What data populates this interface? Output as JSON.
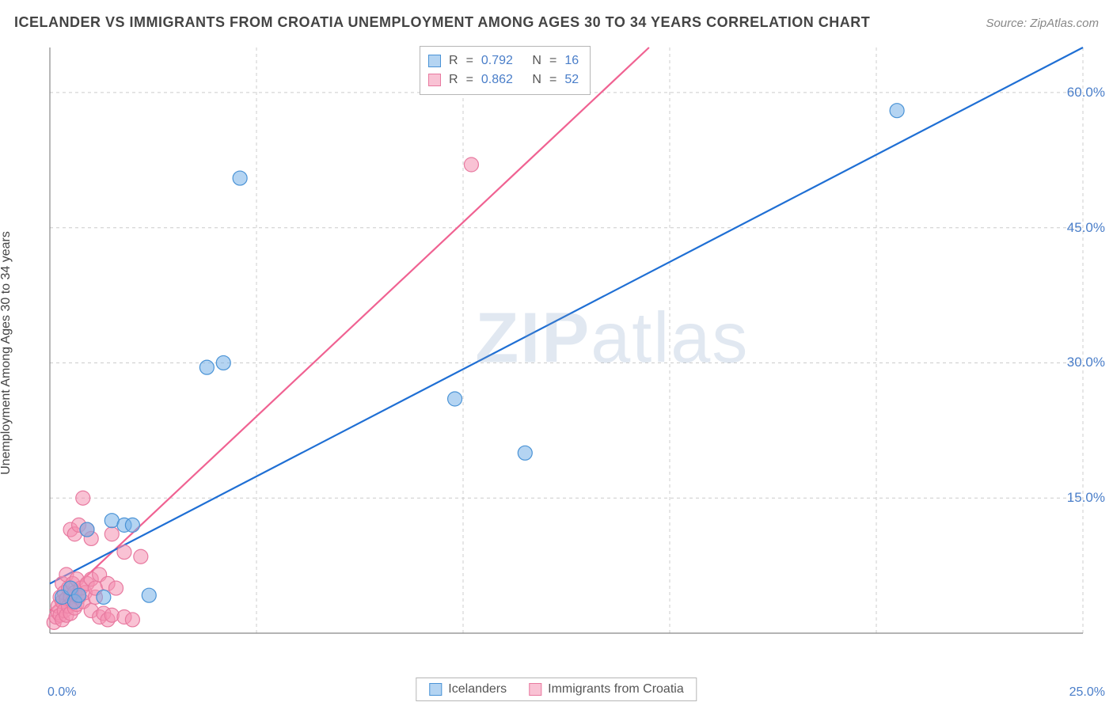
{
  "header": {
    "title": "ICELANDER VS IMMIGRANTS FROM CROATIA UNEMPLOYMENT AMONG AGES 30 TO 34 YEARS CORRELATION CHART",
    "source": "Source: ZipAtlas.com"
  },
  "chart": {
    "type": "scatter",
    "ylabel": "Unemployment Among Ages 30 to 34 years",
    "watermark_a": "ZIP",
    "watermark_b": "atlas",
    "xlim": [
      0,
      25
    ],
    "ylim": [
      0,
      65
    ],
    "xtick_labels": {
      "min": "0.0%",
      "max": "25.0%"
    },
    "ytick_labels": [
      "15.0%",
      "30.0%",
      "45.0%",
      "60.0%"
    ],
    "ytick_values": [
      15,
      30,
      45,
      60
    ],
    "xgrid_values": [
      5,
      10,
      15,
      20,
      25
    ],
    "grid_color": "#cccccc",
    "axis_color": "#888888",
    "background_color": "#ffffff",
    "marker_radius": 9,
    "series": {
      "blue": {
        "label": "Icelanders",
        "fill": "rgba(118,176,232,0.55)",
        "stroke": "#4a93d6",
        "trend_color": "#1f6fd4",
        "R": "0.792",
        "N": "16",
        "trend": {
          "x1": 0,
          "y1": 5.5,
          "x2": 25,
          "y2": 65
        },
        "points": [
          [
            0.3,
            4.0
          ],
          [
            0.5,
            5.0
          ],
          [
            0.6,
            3.5
          ],
          [
            0.7,
            4.2
          ],
          [
            0.9,
            11.5
          ],
          [
            1.3,
            4.0
          ],
          [
            1.5,
            12.5
          ],
          [
            1.8,
            12.0
          ],
          [
            2.0,
            12.0
          ],
          [
            2.4,
            4.2
          ],
          [
            3.8,
            29.5
          ],
          [
            4.2,
            30.0
          ],
          [
            4.6,
            50.5
          ],
          [
            9.8,
            26.0
          ],
          [
            11.5,
            20.0
          ],
          [
            20.5,
            58.0
          ]
        ]
      },
      "pink": {
        "label": "Immigrants from Croatia",
        "fill": "rgba(244,143,177,0.55)",
        "stroke": "#e87aa0",
        "trend_color": "#f06292",
        "R": "0.862",
        "N": "52",
        "trend": {
          "x1": 0,
          "y1": 2.5,
          "x2": 14.5,
          "y2": 65
        },
        "points": [
          [
            0.1,
            1.2
          ],
          [
            0.15,
            1.8
          ],
          [
            0.2,
            2.3
          ],
          [
            0.2,
            3.0
          ],
          [
            0.25,
            2.0
          ],
          [
            0.25,
            4.0
          ],
          [
            0.3,
            1.5
          ],
          [
            0.3,
            3.5
          ],
          [
            0.3,
            5.5
          ],
          [
            0.35,
            2.5
          ],
          [
            0.35,
            4.5
          ],
          [
            0.4,
            2.0
          ],
          [
            0.4,
            3.8
          ],
          [
            0.4,
            6.5
          ],
          [
            0.45,
            3.0
          ],
          [
            0.45,
            5.0
          ],
          [
            0.5,
            2.2
          ],
          [
            0.5,
            4.0
          ],
          [
            0.5,
            11.5
          ],
          [
            0.55,
            3.5
          ],
          [
            0.55,
            5.5
          ],
          [
            0.6,
            2.8
          ],
          [
            0.6,
            4.5
          ],
          [
            0.6,
            11.0
          ],
          [
            0.65,
            3.2
          ],
          [
            0.65,
            6.0
          ],
          [
            0.7,
            4.0
          ],
          [
            0.7,
            12.0
          ],
          [
            0.75,
            5.0
          ],
          [
            0.8,
            3.5
          ],
          [
            0.8,
            15.0
          ],
          [
            0.85,
            4.5
          ],
          [
            0.9,
            5.5
          ],
          [
            0.9,
            11.5
          ],
          [
            1.0,
            2.5
          ],
          [
            1.0,
            6.0
          ],
          [
            1.0,
            10.5
          ],
          [
            1.1,
            4.0
          ],
          [
            1.1,
            5.0
          ],
          [
            1.2,
            1.8
          ],
          [
            1.2,
            6.5
          ],
          [
            1.3,
            2.2
          ],
          [
            1.4,
            1.5
          ],
          [
            1.4,
            5.5
          ],
          [
            1.5,
            2.0
          ],
          [
            1.5,
            11.0
          ],
          [
            1.6,
            5.0
          ],
          [
            1.8,
            1.8
          ],
          [
            1.8,
            9.0
          ],
          [
            2.0,
            1.5
          ],
          [
            2.2,
            8.5
          ],
          [
            10.2,
            52.0
          ]
        ]
      }
    },
    "stats_labels": {
      "R": "R",
      "eq": "=",
      "N": "N"
    }
  }
}
